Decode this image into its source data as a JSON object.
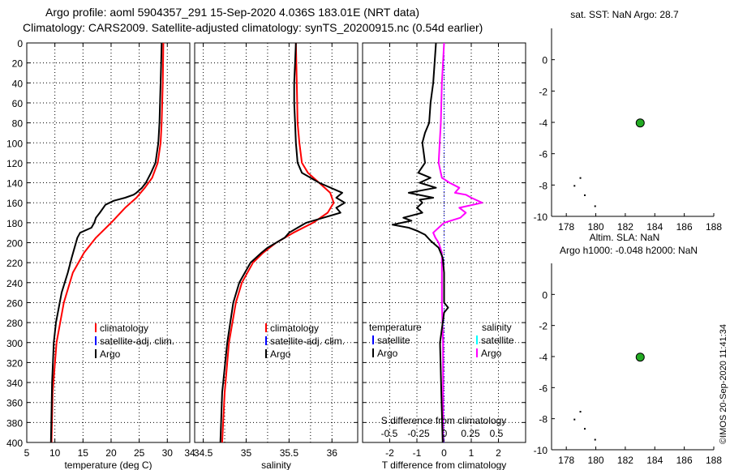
{
  "titles": {
    "line1": "Argo profile: aoml 5904357_291 15-Sep-2020 4.036S 183.01E (NRT data)",
    "line2": "Climatology: CARS2009. Satellite-adjusted climatology: synTS_20200915.nc (0.54d earlier)"
  },
  "watermark": "©IMOS 20-Sep-2020 11:41:34",
  "colors": {
    "climatology": "#ff0000",
    "satellite": "#0000ff",
    "argo": "#000000",
    "salinity_argo": "#ff00ff",
    "salinity_sat": "#00ffff",
    "point": "#22aa22"
  },
  "depth_ticks": [
    0,
    20,
    40,
    60,
    80,
    100,
    120,
    140,
    160,
    180,
    200,
    220,
    240,
    260,
    280,
    300,
    320,
    340,
    360,
    380,
    400
  ],
  "chart_data": [
    {
      "type": "line",
      "name": "temperature-profile",
      "xlabel": "temperature (deg C)",
      "xlim": [
        5,
        34
      ],
      "ylim": [
        0,
        400
      ],
      "xticks": [
        5,
        10,
        15,
        20,
        25,
        30
      ],
      "legend": [
        "climatology",
        "satellite-adj. clim.",
        "Argo"
      ],
      "series": [
        {
          "name": "climatology",
          "depth": [
            0,
            40,
            80,
            100,
            120,
            135,
            145,
            155,
            165,
            180,
            195,
            210,
            230,
            260,
            300,
            350,
            400
          ],
          "values": [
            29.3,
            29.2,
            29.0,
            28.8,
            28.3,
            27.3,
            26.0,
            24.5,
            22.5,
            20.0,
            17.3,
            15.2,
            13.2,
            11.6,
            10.3,
            9.6,
            9.4
          ]
        },
        {
          "name": "Argo",
          "depth": [
            0,
            20,
            40,
            60,
            80,
            100,
            120,
            130,
            140,
            145,
            150,
            152,
            155,
            158,
            162,
            170,
            175,
            180,
            185,
            190,
            195,
            205,
            215,
            230,
            250,
            280,
            300,
            340,
            400
          ],
          "values": [
            29.0,
            28.9,
            28.8,
            28.7,
            28.6,
            28.4,
            27.9,
            27.1,
            26.2,
            25.5,
            24.5,
            24.0,
            22.5,
            20.5,
            19.0,
            18.0,
            17.3,
            17.0,
            16.5,
            14.5,
            14.0,
            13.5,
            13.0,
            12.3,
            11.2,
            10.2,
            9.8,
            9.5,
            9.3
          ]
        }
      ]
    },
    {
      "type": "line",
      "name": "salinity-profile",
      "xlabel": "salinity",
      "xlim": [
        34.4,
        36.3
      ],
      "ylim": [
        0,
        400
      ],
      "xticks": [
        34.5,
        35,
        35.5,
        36
      ],
      "legend": [
        "climatology",
        "satellite-adj. clim.",
        "Argo"
      ],
      "series": [
        {
          "name": "climatology",
          "depth": [
            0,
            40,
            80,
            100,
            120,
            130,
            140,
            150,
            160,
            170,
            180,
            190,
            200,
            210,
            220,
            240,
            260,
            300,
            350,
            400
          ],
          "values": [
            35.58,
            35.59,
            35.6,
            35.62,
            35.65,
            35.72,
            35.85,
            35.98,
            36.02,
            35.95,
            35.78,
            35.55,
            35.35,
            35.2,
            35.08,
            34.95,
            34.88,
            34.8,
            34.75,
            34.72
          ]
        },
        {
          "name": "Argo",
          "depth": [
            0,
            20,
            40,
            60,
            80,
            100,
            120,
            130,
            140,
            150,
            155,
            160,
            165,
            170,
            175,
            180,
            185,
            190,
            195,
            200,
            205,
            210,
            220,
            240,
            260,
            300,
            350,
            400
          ],
          "values": [
            35.58,
            35.57,
            35.56,
            35.56,
            35.57,
            35.58,
            35.6,
            35.65,
            35.85,
            36.12,
            36.05,
            36.15,
            36.05,
            36.1,
            35.9,
            35.7,
            35.6,
            35.5,
            35.45,
            35.35,
            35.25,
            35.18,
            35.05,
            34.92,
            34.85,
            34.78,
            34.72,
            34.7
          ]
        }
      ]
    },
    {
      "type": "line",
      "name": "difference-profile",
      "xlabel": "T difference from climatology",
      "xlabel_top": "S difference from climatology",
      "xlim": [
        -3,
        3
      ],
      "ylim": [
        0,
        400
      ],
      "xticks_bottom": [
        -2,
        -1,
        0,
        1,
        2
      ],
      "xticks_top_labels": [
        "-0.5",
        "-0.25",
        "0",
        "0.25",
        "0.5"
      ],
      "legend_left_title": "temperature",
      "legend_left": [
        "satellite",
        "Argo"
      ],
      "legend_right_title": "salinity",
      "legend_right": [
        "satellite",
        "Argo"
      ],
      "series": [
        {
          "name": "T difference Argo",
          "depth": [
            0,
            20,
            40,
            60,
            80,
            90,
            100,
            110,
            120,
            130,
            135,
            140,
            145,
            150,
            155,
            157,
            160,
            165,
            170,
            175,
            178,
            182,
            185,
            188,
            192,
            198,
            205,
            215,
            230,
            260,
            265,
            270,
            300,
            350,
            400
          ],
          "values": [
            -0.3,
            -0.35,
            -0.4,
            -0.5,
            -0.55,
            -0.7,
            -0.8,
            -0.75,
            -0.7,
            -0.95,
            -0.5,
            -0.9,
            -0.3,
            -1.3,
            -0.4,
            -0.9,
            -0.8,
            -1.0,
            -0.8,
            -1.5,
            -1.2,
            -1.9,
            -1.3,
            -1.0,
            -0.7,
            -0.5,
            -0.2,
            -0.05,
            0.0,
            0.0,
            0.15,
            0.0,
            -0.15,
            -0.1,
            -0.05
          ]
        },
        {
          "name": "S difference Argo",
          "depth": [
            0,
            40,
            80,
            100,
            120,
            135,
            140,
            145,
            150,
            152,
            155,
            160,
            165,
            170,
            175,
            180,
            185,
            190,
            195,
            200,
            210,
            230,
            260,
            300,
            350,
            400
          ],
          "values": [
            0.0,
            -0.02,
            -0.03,
            -0.04,
            -0.05,
            -0.02,
            0.05,
            0.14,
            0.1,
            0.2,
            0.25,
            0.35,
            0.14,
            0.2,
            0.15,
            0.0,
            -0.05,
            -0.1,
            -0.08,
            -0.05,
            -0.02,
            -0.02,
            -0.02,
            -0.01,
            -0.01,
            -0.01
          ]
        }
      ]
    },
    {
      "type": "scatter",
      "name": "sst-map",
      "title": "sat. SST: NaN Argo: 28.7",
      "xlim": [
        177,
        188
      ],
      "ylim": [
        -10,
        2
      ],
      "xticks": [
        178,
        180,
        182,
        184,
        186,
        188
      ],
      "yticks": [
        0,
        -2,
        -4,
        -6,
        -8,
        -10
      ],
      "argo_position": [
        183.01,
        -4.036
      ],
      "land_dots": [
        [
          178.9,
          -7.5
        ],
        [
          178.5,
          -8.0
        ],
        [
          179.2,
          -8.6
        ],
        [
          179.9,
          -9.3
        ]
      ]
    },
    {
      "type": "scatter",
      "name": "sla-map",
      "title": "Altim. SLA: NaN",
      "subtitle": "Argo h1000: -0.048 h2000: NaN",
      "xlim": [
        177,
        188
      ],
      "ylim": [
        -10,
        2
      ],
      "xticks": [
        178,
        180,
        182,
        184,
        186,
        188
      ],
      "yticks": [
        0,
        -2,
        -4,
        -6,
        -8,
        -10
      ],
      "argo_position": [
        183.01,
        -4.036
      ],
      "land_dots": [
        [
          178.9,
          -7.5
        ],
        [
          178.5,
          -8.0
        ],
        [
          179.2,
          -8.6
        ],
        [
          179.9,
          -9.3
        ]
      ]
    }
  ]
}
